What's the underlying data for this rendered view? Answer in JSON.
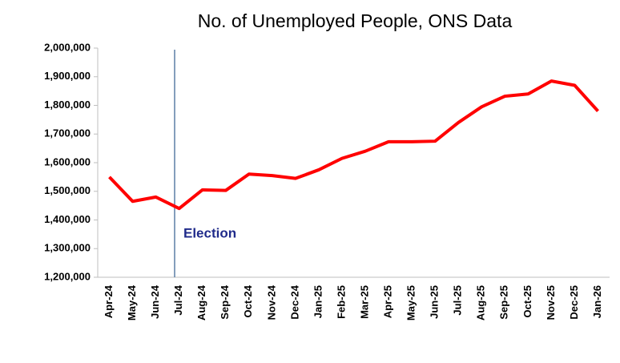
{
  "chart_data": {
    "type": "line",
    "title": "No. of Unemployed People, ONS Data",
    "categories": [
      "Apr-24",
      "May-24",
      "Jun-24",
      "Jul-24",
      "Aug-24",
      "Sep-24",
      "Oct-24",
      "Nov-24",
      "Dec-24",
      "Jan-25",
      "Feb-25",
      "Mar-25",
      "Apr-25",
      "May-25",
      "Jun-25",
      "Jul-25",
      "Aug-25",
      "Sep-25",
      "Oct-25",
      "Nov-25",
      "Dec-25",
      "Jan-26"
    ],
    "series": [
      {
        "name": "Unemployed",
        "color": "#ff0000",
        "values": [
          1550000,
          1465000,
          1480000,
          1440000,
          1505000,
          1503000,
          1560000,
          1555000,
          1545000,
          1575000,
          1615000,
          1640000,
          1673000,
          1673000,
          1675000,
          1740000,
          1795000,
          1832000,
          1840000,
          1885000,
          1870000,
          1780000
        ]
      }
    ],
    "ylim": [
      1200000,
      2000000
    ],
    "yticks": [
      {
        "value": 1200000,
        "label": "1,200,000"
      },
      {
        "value": 1300000,
        "label": "1,300,000"
      },
      {
        "value": 1400000,
        "label": "1,400,000"
      },
      {
        "value": 1500000,
        "label": "1,500,000"
      },
      {
        "value": 1600000,
        "label": "1,600,000"
      },
      {
        "value": 1700000,
        "label": "1,700,000"
      },
      {
        "value": 1800000,
        "label": "1,800,000"
      },
      {
        "value": 1900000,
        "label": "1,900,000"
      },
      {
        "value": 2000000,
        "label": "2,000,000"
      }
    ],
    "annotation": "Election",
    "grid": false
  }
}
